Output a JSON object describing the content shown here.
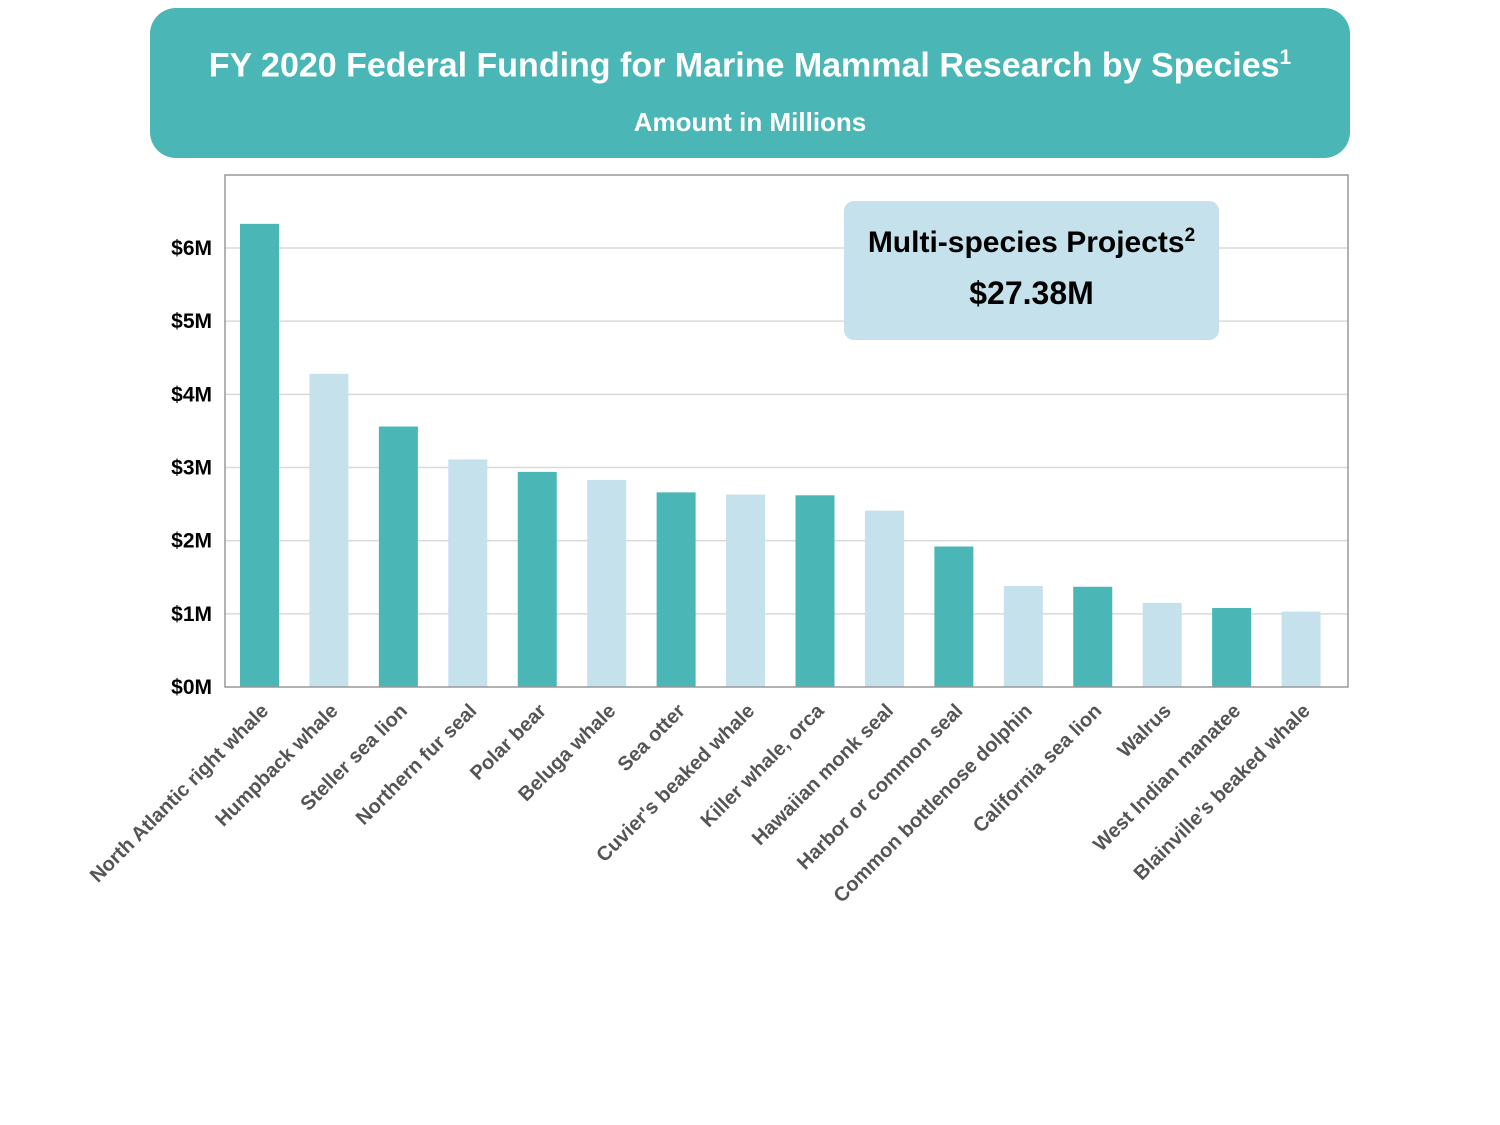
{
  "title": {
    "main": "FY 2020 Federal Funding for Marine Mammal Research by Species",
    "footnote": "1",
    "subtitle": "Amount in Millions"
  },
  "callout": {
    "label": "Multi-species Projects",
    "footnote": "2",
    "value": "$27.38M"
  },
  "colors": {
    "dark_bar": "#4ab6b6",
    "light_bar": "#c5e1ec",
    "banner": "#4ab6b6",
    "callout_bg": "#c5e1ec"
  },
  "chart_data": {
    "type": "bar",
    "title": "FY 2020 Federal Funding for Marine Mammal Research by Species",
    "subtitle": "Amount in Millions",
    "xlabel": "",
    "ylabel": "",
    "ylim": [
      0,
      7
    ],
    "grid": true,
    "yticks": [
      {
        "value": 0,
        "label": "$0M"
      },
      {
        "value": 1,
        "label": "$1M"
      },
      {
        "value": 2,
        "label": "$2M"
      },
      {
        "value": 3,
        "label": "$3M"
      },
      {
        "value": 4,
        "label": "$4M"
      },
      {
        "value": 5,
        "label": "$5M"
      },
      {
        "value": 6,
        "label": "$6M"
      }
    ],
    "categories": [
      "North Atlantic right whale",
      "Humpback whale",
      "Steller sea lion",
      "Northern fur seal",
      "Polar bear",
      "Beluga whale",
      "Sea otter",
      "Cuvier's beaked whale",
      "Killer whale, orca",
      "Hawaiian monk seal",
      "Harbor or common seal",
      "Common bottlenose dolphin",
      "California sea lion",
      "Walrus",
      "West Indian manatee",
      "Blainville’s beaked whale"
    ],
    "values": [
      6.33,
      4.28,
      3.56,
      3.11,
      2.94,
      2.83,
      2.66,
      2.63,
      2.62,
      2.41,
      1.92,
      1.38,
      1.37,
      1.15,
      1.08,
      1.03
    ],
    "bar_color_pattern": [
      "dark",
      "light"
    ]
  }
}
